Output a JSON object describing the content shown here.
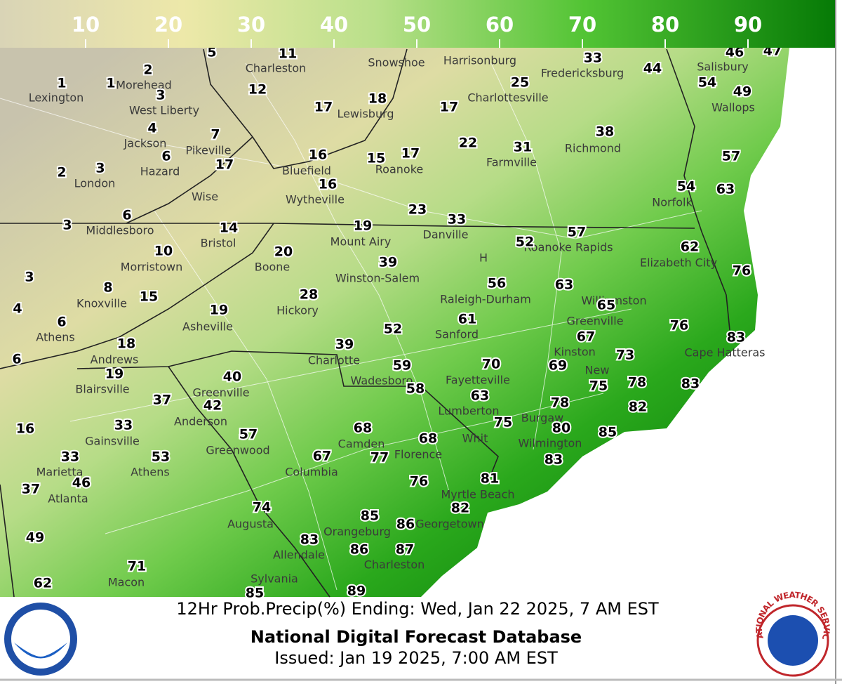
{
  "legend": {
    "range": [
      0,
      100
    ],
    "ticks": [
      10,
      20,
      30,
      40,
      50,
      60,
      70,
      80,
      90
    ]
  },
  "map": {
    "cities": [
      "Charleston",
      "Snowshoe",
      "Harrisonburg",
      "Fredericksburg",
      "Salisbury",
      "Lexington",
      "Morehead",
      "West Liberty",
      "Charlottesville",
      "Lewisburg",
      "Wallops",
      "Jackson",
      "Pikeville",
      "Richmond",
      "Hazard",
      "Bluefield",
      "Roanoke",
      "Farmville",
      "London",
      "Wise",
      "Wytheville",
      "Norfolk",
      "Middlesboro",
      "Bristol",
      "Mount Airy",
      "Danville",
      "Roanoke Rapids",
      "Elizabeth City",
      "Morristown",
      "Boone",
      "Winston-Salem",
      "H",
      "Knoxville",
      "Raleigh-Durham",
      "Williamston",
      "Hickory",
      "Asheville",
      "Greenville",
      "Sanford",
      "Athens",
      "Kinston",
      "Cape Hatteras",
      "Andrews",
      "Charlotte",
      "New",
      "Blairsville",
      "Wadesboro",
      "Fayetteville",
      "Greenville",
      "Lumberton",
      "Burgaw",
      "Anderson",
      "Gainsville",
      "Camden",
      "Whit",
      "Wilmington",
      "Greenwood",
      "Florence",
      "Marietta",
      "Athens",
      "Columbia",
      "Atlanta",
      "Myrtle Beach",
      "Augusta",
      "Orangeburg",
      "Georgetown",
      "Allendale",
      "Charleston",
      "Macon",
      "Sylvania"
    ],
    "values": [
      5,
      11,
      33,
      46,
      47,
      44,
      1,
      1,
      2,
      54,
      25,
      12,
      3,
      49,
      18,
      17,
      17,
      4,
      7,
      38,
      6,
      16,
      15,
      17,
      22,
      31,
      57,
      17,
      2,
      3,
      16,
      54,
      63,
      23,
      33,
      6,
      3,
      14,
      19,
      57,
      52,
      62,
      10,
      20,
      39,
      76,
      3,
      8,
      56,
      63,
      15,
      4,
      65,
      28,
      19,
      6,
      61,
      52,
      76,
      67,
      83,
      18,
      39,
      73,
      6,
      19,
      59,
      70,
      69,
      40,
      75,
      78,
      83,
      58,
      37,
      63,
      78,
      82,
      42,
      16,
      33,
      75,
      80,
      85,
      68,
      68,
      57,
      83,
      67,
      77,
      53,
      33,
      81,
      46,
      76,
      37,
      82,
      74,
      85,
      86,
      49,
      83,
      86,
      87,
      71,
      62,
      85,
      89
    ]
  },
  "footer": {
    "title": "12Hr Prob.Precip(%) Ending: Wed, Jan 22 2025, 7 AM EST",
    "source": "National Digital Forecast Database",
    "issued": "Issued: Jan 19 2025, 7:00 AM EST"
  },
  "logos": {
    "noaa": "NOAA",
    "nws": "NATIONAL WEATHER SERVICE"
  }
}
